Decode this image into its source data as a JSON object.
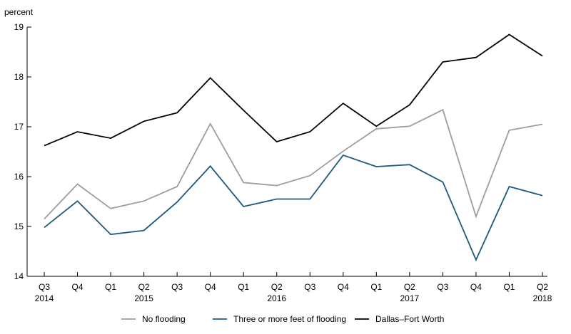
{
  "chart_data": {
    "type": "line",
    "ylabel": "percent",
    "ylim": [
      14,
      19
    ],
    "yticks": [
      14,
      15,
      16,
      17,
      18,
      19
    ],
    "grid": false,
    "legend_position": "bottom",
    "categories": [
      "Q3",
      "Q4",
      "Q1",
      "Q2",
      "Q3",
      "Q4",
      "Q1",
      "Q2",
      "Q3",
      "Q4",
      "Q1",
      "Q2",
      "Q3",
      "Q4",
      "Q1",
      "Q2"
    ],
    "years": [
      {
        "label": "2014",
        "index": 0
      },
      {
        "label": "2015",
        "index": 3
      },
      {
        "label": "2016",
        "index": 7
      },
      {
        "label": "2017",
        "index": 11
      },
      {
        "label": "2018",
        "index": 15
      }
    ],
    "series": [
      {
        "name": "No flooding",
        "color": "#9e9e9e",
        "values": [
          15.15,
          15.85,
          15.36,
          15.51,
          15.8,
          17.06,
          15.88,
          15.82,
          16.02,
          16.51,
          16.96,
          17.01,
          17.34,
          15.2,
          16.93,
          17.05
        ]
      },
      {
        "name": "Three or more feet of flooding",
        "color": "#1d5a7e",
        "values": [
          14.98,
          15.51,
          14.84,
          14.92,
          15.49,
          16.21,
          15.4,
          15.55,
          15.55,
          16.43,
          16.2,
          16.24,
          15.89,
          14.33,
          15.8,
          15.62
        ]
      },
      {
        "name": "Dallas–Fort Worth",
        "color": "#000000",
        "values": [
          16.62,
          16.9,
          16.77,
          17.11,
          17.28,
          17.98,
          17.33,
          16.7,
          16.9,
          17.47,
          17.01,
          17.44,
          18.3,
          18.39,
          18.85,
          18.42
        ]
      }
    ]
  }
}
